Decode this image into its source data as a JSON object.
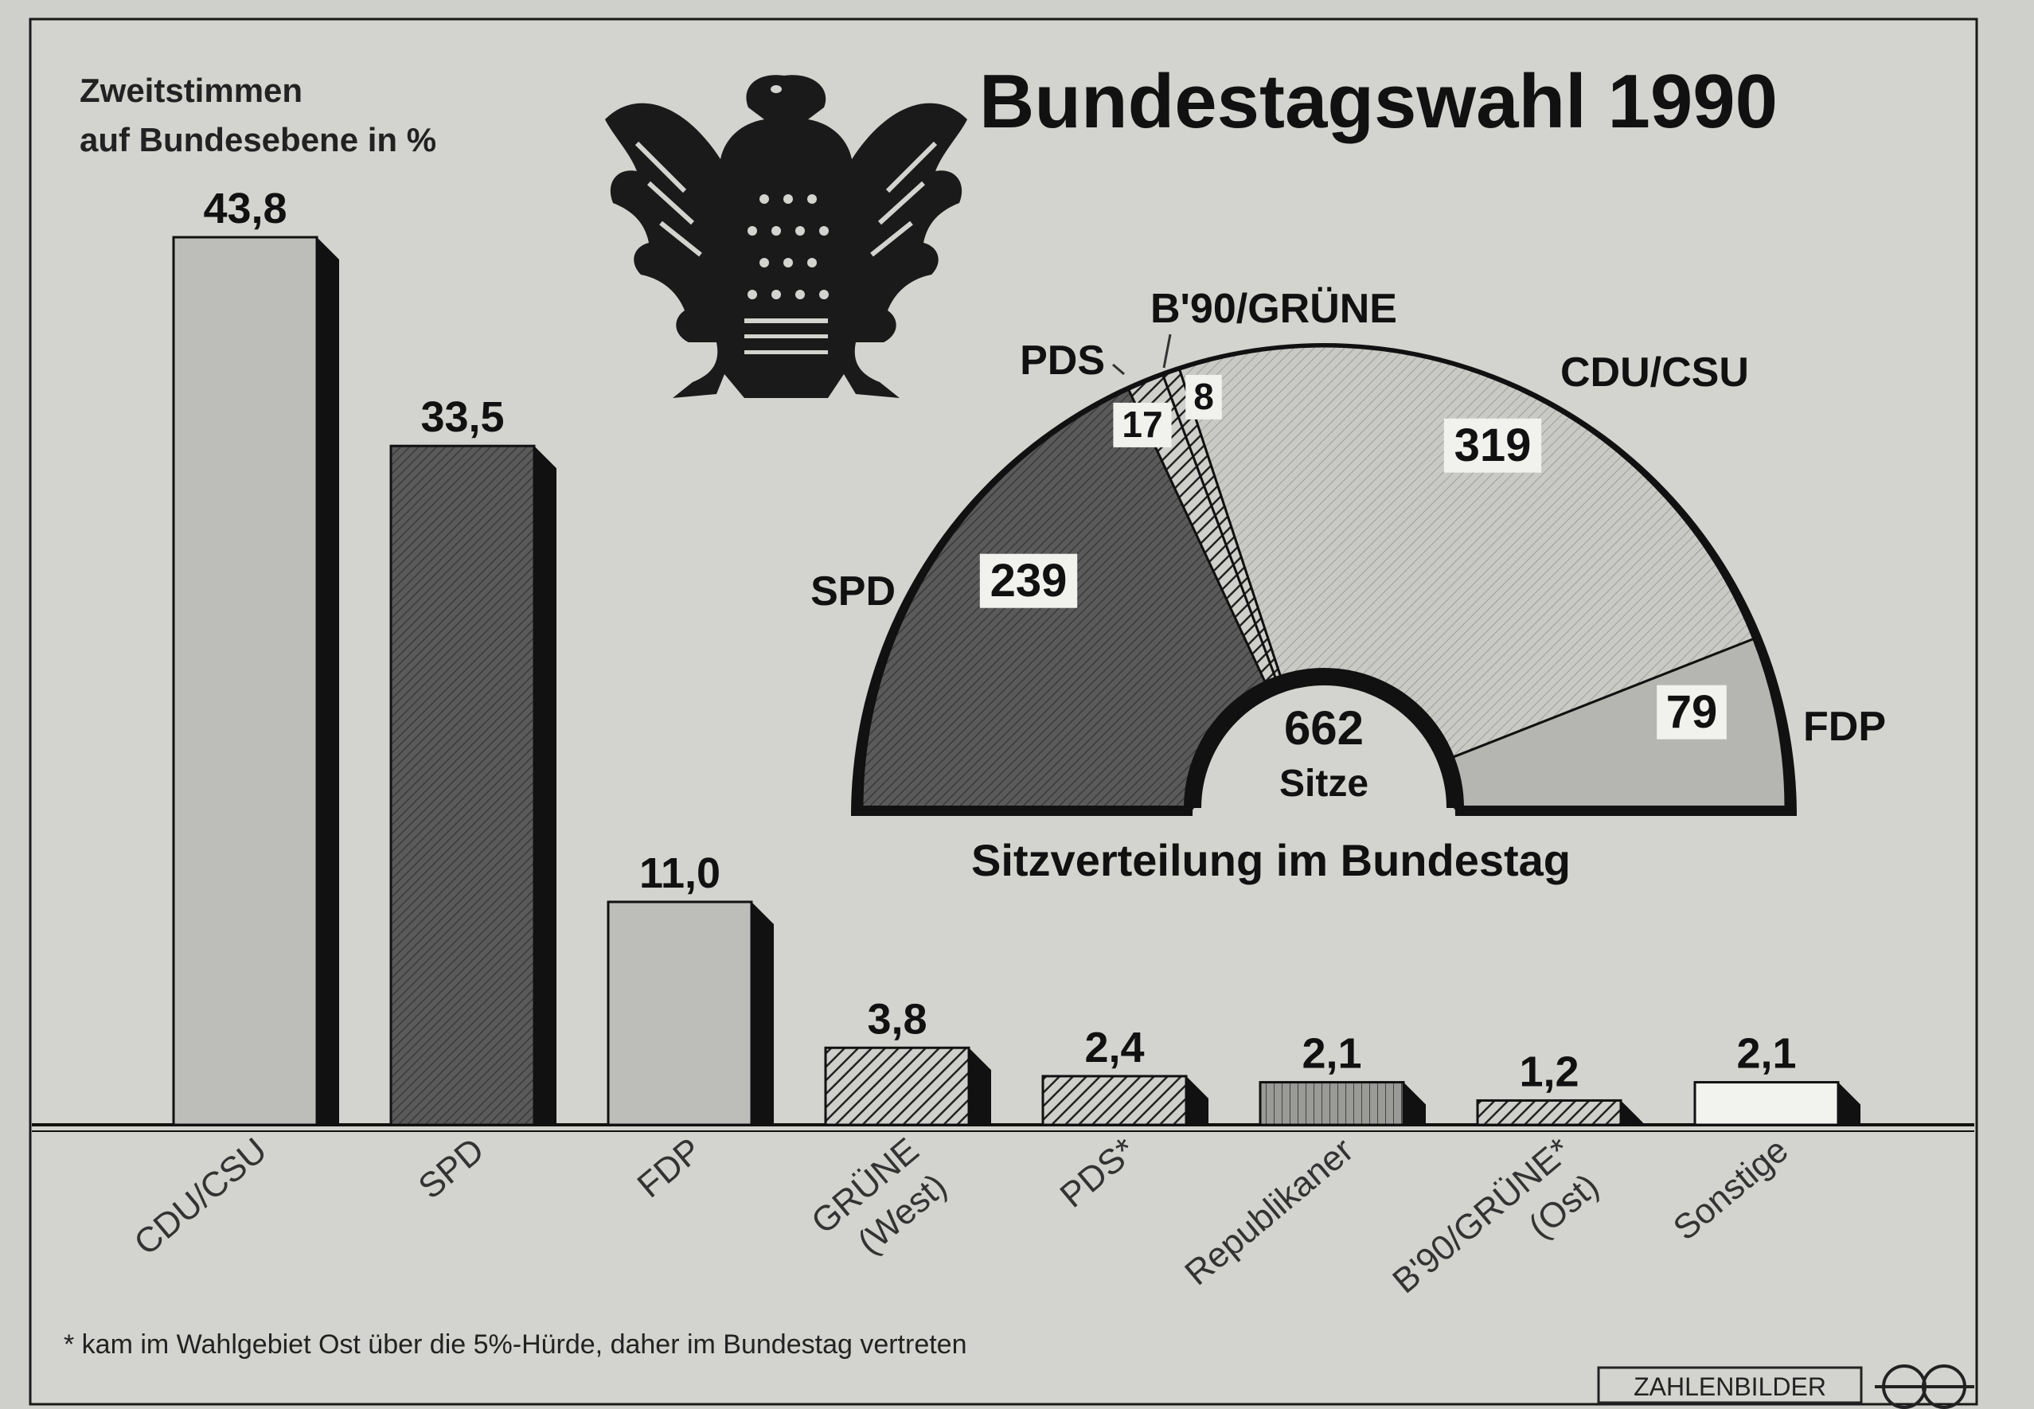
{
  "title": "Bundestagswahl 1990",
  "bar_subtitle_line1": "Zweitstimmen",
  "bar_subtitle_line2": "auf Bundesebene in %",
  "seat_chart_title": "Sitzverteilung im Bundestag",
  "seat_total_value": "662",
  "seat_total_unit": "Sitze",
  "footnote": "* kam im Wahlgebiet Ost über die 5%-Hürde, daher im Bundestag vertreten",
  "source_label": "ZAHLENBILDER",
  "colors": {
    "background": "#cfcfcb",
    "ink": "#111111",
    "bar_light": "#bdbdba",
    "bar_dark": "#575757",
    "seat_light": "#c4c4c0"
  },
  "icons": {
    "emblem": "federal-eagle-icon",
    "publisher": "zahlenbilder-logo-icon"
  },
  "chart_data": [
    {
      "type": "bar",
      "title": "Zweitstimmen auf Bundesebene in %",
      "categories": [
        [
          "CDU/CSU"
        ],
        [
          "SPD"
        ],
        [
          "FDP"
        ],
        [
          "GRÜNE",
          "(West)"
        ],
        [
          "PDS*"
        ],
        [
          "Republikaner"
        ],
        [
          "B'90/GRÜNE*",
          "(Ost)"
        ],
        [
          "Sonstige"
        ]
      ],
      "values": [
        43.8,
        33.5,
        11.0,
        3.8,
        2.4,
        2.1,
        1.2,
        2.1
      ],
      "value_labels": [
        "43,8",
        "33,5",
        "11,0",
        "3,8",
        "2,4",
        "2,1",
        "1,2",
        "2,1"
      ],
      "fills": [
        "light",
        "dark",
        "light",
        "hatch",
        "hatch",
        "grid",
        "hatch",
        "white"
      ],
      "ylim": [
        0,
        45
      ]
    },
    {
      "type": "pie",
      "shape": "half-donut",
      "title": "Sitzverteilung im Bundestag",
      "total": 662,
      "slices": [
        {
          "label": "SPD",
          "value": 239,
          "fill": "dark"
        },
        {
          "label": "PDS",
          "value": 17,
          "fill": "hatch"
        },
        {
          "label": "B'90/GRÜNE",
          "value": 8,
          "fill": "hatch"
        },
        {
          "label": "CDU/CSU",
          "value": 319,
          "fill": "dotted"
        },
        {
          "label": "FDP",
          "value": 79,
          "fill": "light"
        }
      ]
    }
  ]
}
